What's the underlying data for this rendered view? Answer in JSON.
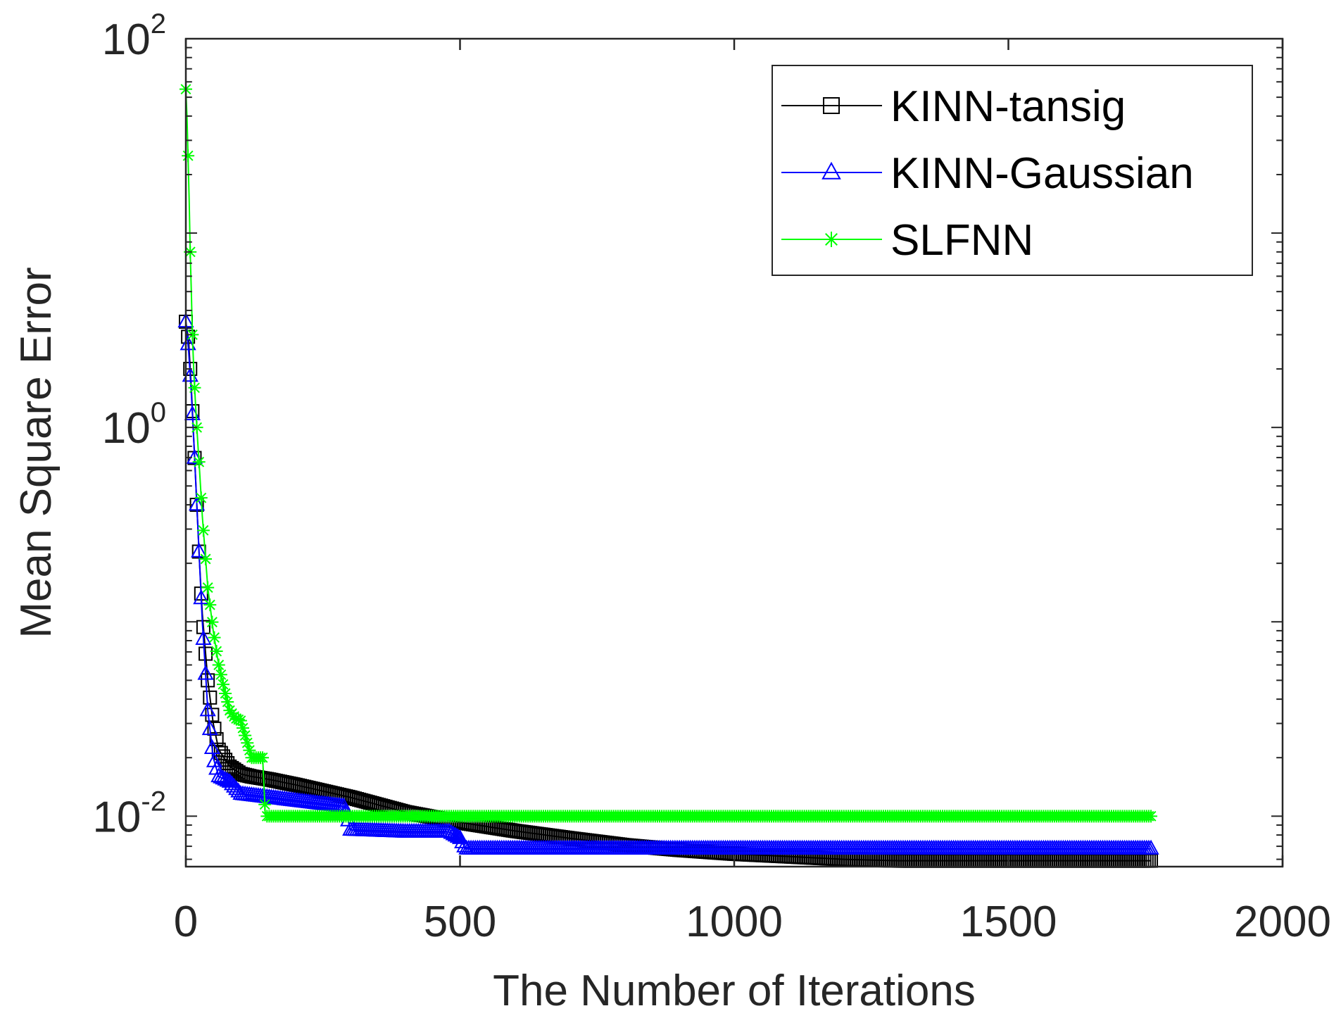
{
  "chart_data": {
    "type": "line",
    "title": "",
    "xlabel": "The Number of Iterations",
    "ylabel": "Mean Square Error",
    "xlim": [
      0,
      2000
    ],
    "ylim": [
      0.0055,
      100
    ],
    "yscale": "log",
    "xticks": [
      0,
      500,
      1000,
      1500,
      2000
    ],
    "xtick_labels": [
      "0",
      "500",
      "1000",
      "1500",
      "2000"
    ],
    "yticks": [
      {
        "value": 100,
        "base": "10",
        "exp": "2"
      },
      {
        "value": 1,
        "base": "10",
        "exp": "0"
      },
      {
        "value": 0.01,
        "base": "10",
        "exp": "-2"
      }
    ],
    "grid": false,
    "legend_position": "top-right",
    "series": [
      {
        "name": "KINN-tansig",
        "color": "#000000",
        "marker": "square",
        "x": [
          0,
          5,
          10,
          15,
          20,
          25,
          30,
          40,
          50,
          60,
          80,
          100,
          120,
          150,
          200,
          300,
          400,
          500,
          600,
          700,
          800,
          900,
          1000,
          1100,
          1200,
          1300,
          1400,
          1500,
          1600,
          1700,
          1760
        ],
        "y": [
          3.5,
          2.8,
          1.6,
          0.8,
          0.4,
          0.2,
          0.11,
          0.05,
          0.03,
          0.022,
          0.018,
          0.0165,
          0.016,
          0.0155,
          0.0145,
          0.0125,
          0.0105,
          0.0093,
          0.0084,
          0.0077,
          0.0071,
          0.0067,
          0.0064,
          0.0062,
          0.006,
          0.0059,
          0.0059,
          0.0059,
          0.0059,
          0.0059,
          0.0059
        ]
      },
      {
        "name": "KINN-Gaussian",
        "color": "#0000ff",
        "marker": "triangle",
        "x": [
          0,
          5,
          10,
          15,
          20,
          25,
          30,
          35,
          40,
          50,
          60,
          80,
          100,
          150,
          200,
          290,
          300,
          400,
          480,
          500,
          510,
          600,
          800,
          1000,
          1200,
          1400,
          1600,
          1760
        ],
        "y": [
          3.5,
          2.5,
          1.5,
          0.8,
          0.4,
          0.2,
          0.1,
          0.06,
          0.035,
          0.02,
          0.016,
          0.015,
          0.013,
          0.0125,
          0.012,
          0.0112,
          0.0085,
          0.0083,
          0.0083,
          0.0077,
          0.0068,
          0.0068,
          0.0068,
          0.0068,
          0.0068,
          0.0068,
          0.0068,
          0.0068
        ]
      },
      {
        "name": "SLFNN",
        "color": "#00ff00",
        "marker": "asterisk",
        "x": [
          0,
          2,
          4,
          6,
          8,
          10,
          12,
          15,
          20,
          25,
          30,
          40,
          50,
          60,
          70,
          80,
          90,
          100,
          120,
          130,
          140,
          145,
          150,
          200,
          400,
          600,
          800,
          1000,
          1200,
          1400,
          1600,
          1760
        ],
        "y": [
          55,
          40,
          25,
          15,
          8,
          5,
          3,
          1.8,
          1.0,
          0.6,
          0.35,
          0.15,
          0.09,
          0.06,
          0.045,
          0.035,
          0.032,
          0.031,
          0.02,
          0.02,
          0.02,
          0.01,
          0.01,
          0.01,
          0.01,
          0.01,
          0.01,
          0.01,
          0.01,
          0.01,
          0.01,
          0.01
        ]
      }
    ]
  }
}
